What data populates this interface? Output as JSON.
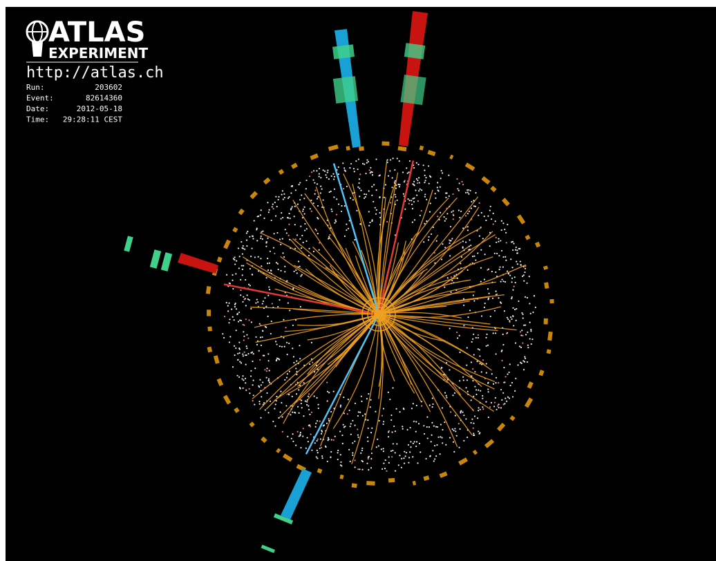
{
  "logo": {
    "title": "ATLAS",
    "subtitle": "EXPERIMENT",
    "url": "http://atlas.ch"
  },
  "event_info": [
    {
      "label": "Run:",
      "value": 203602
    },
    {
      "label": "Event:",
      "value": 82614360
    },
    {
      "label": "Date:",
      "value": "2012-05-18"
    },
    {
      "label": "Time:",
      "value": "29:28:11 CEST"
    }
  ]
}
